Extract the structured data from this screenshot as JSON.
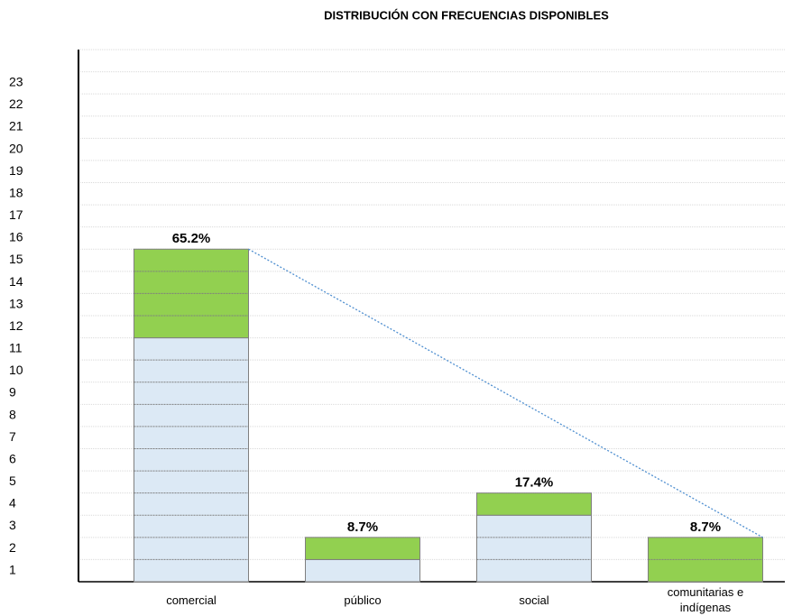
{
  "chart_data": {
    "type": "stacked_bar",
    "title": "DISTRIBUCIÓN CON FRECUENCIAS DISPONIBLES",
    "categories": [
      "comercial",
      "público",
      "social",
      "comunitarias e indígenas"
    ],
    "series": [
      {
        "color": "#dce9f5",
        "values": [
          11,
          1,
          3,
          0
        ]
      },
      {
        "color": "#92d050",
        "values": [
          4,
          1,
          1,
          2
        ]
      }
    ],
    "shares": {
      "values": [
        65.2,
        8.7,
        17.4,
        8.7
      ],
      "value_labels": [
        "65.2%",
        "8.7%",
        "17.4%",
        "8.7%"
      ]
    },
    "ylim": [
      0,
      24
    ],
    "yticks": [
      {
        "value": 0.5,
        "label": "1"
      },
      {
        "value": 1.5,
        "label": "2"
      },
      {
        "value": 2.5,
        "label": "3"
      },
      {
        "value": 3.5,
        "label": "4"
      },
      {
        "value": 4.5,
        "label": "5"
      },
      {
        "value": 5.5,
        "label": "6"
      },
      {
        "value": 6.5,
        "label": "7"
      },
      {
        "value": 7.5,
        "label": "8"
      },
      {
        "value": 8.5,
        "label": "9"
      },
      {
        "value": 9.5,
        "label": "10"
      },
      {
        "value": 10.5,
        "label": "11"
      },
      {
        "value": 11.5,
        "label": "12"
      },
      {
        "value": 12.5,
        "label": "13"
      },
      {
        "value": 13.5,
        "label": "14"
      },
      {
        "value": 14.5,
        "label": "15"
      },
      {
        "value": 15.5,
        "label": "16"
      },
      {
        "value": 16.5,
        "label": "17"
      },
      {
        "value": 17.5,
        "label": "18"
      },
      {
        "value": 18.5,
        "label": "19"
      },
      {
        "value": 19.5,
        "label": "20"
      },
      {
        "value": 20.5,
        "label": "21"
      },
      {
        "value": 21.5,
        "label": "22"
      },
      {
        "value": 22.5,
        "label": "23"
      }
    ],
    "gridlines": [
      1,
      2,
      3,
      4,
      5,
      6,
      7,
      8,
      9,
      10,
      11,
      12,
      13,
      14,
      15,
      16,
      17,
      18,
      19,
      20,
      21,
      22,
      23,
      24
    ],
    "grid": true
  }
}
